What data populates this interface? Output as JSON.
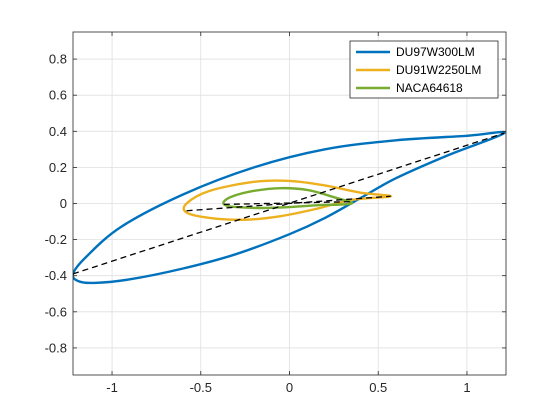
{
  "chart_data": {
    "type": "line",
    "title": "",
    "xlabel": "",
    "ylabel": "",
    "xlim": [
      -1.22,
      1.22
    ],
    "ylim": [
      -0.95,
      0.95
    ],
    "grid": true,
    "legend_location": "top-right",
    "x_ticks": [
      -1,
      -0.5,
      0,
      0.5,
      1
    ],
    "x_tick_labels": [
      "-1",
      "-0.5",
      "0",
      "0.5",
      "1"
    ],
    "y_ticks": [
      -0.8,
      -0.6,
      -0.4,
      -0.2,
      0,
      0.2,
      0.4,
      0.6,
      0.8
    ],
    "y_tick_labels": [
      "-0.8",
      "-0.6",
      "-0.4",
      "-0.2",
      "0",
      "0.2",
      "0.4",
      "0.6",
      "0.8"
    ],
    "series": [
      {
        "name": "DU97W300LM",
        "color": "#0072BD",
        "style": "solid",
        "x": [
          1.21,
          1.0,
          0.6,
          0.2,
          -0.2,
          -0.6,
          -0.95,
          -1.15,
          -1.22,
          -1.19,
          -1.1,
          -0.9,
          -0.6,
          -0.3,
          0.0,
          0.2,
          0.4,
          0.6,
          0.9,
          1.21
        ],
        "y": [
          0.39,
          0.375,
          0.35,
          0.3,
          0.2,
          0.05,
          -0.13,
          -0.3,
          -0.39,
          -0.43,
          -0.44,
          -0.42,
          -0.36,
          -0.28,
          -0.17,
          -0.08,
          0.03,
          0.14,
          0.27,
          0.39
        ]
      },
      {
        "name": "DU91W2250LM",
        "color": "#EDB120",
        "style": "solid",
        "x": [
          0.57,
          0.4,
          0.2,
          0.0,
          -0.2,
          -0.45,
          -0.58,
          -0.58,
          -0.45,
          -0.25,
          -0.05,
          0.15,
          0.35,
          0.57
        ],
        "y": [
          0.04,
          0.06,
          0.1,
          0.125,
          0.12,
          0.07,
          0.0,
          -0.05,
          -0.08,
          -0.09,
          -0.07,
          -0.03,
          0.02,
          0.04
        ]
      },
      {
        "name": "NACA64618",
        "color": "#77AC30",
        "style": "solid",
        "x": [
          0.35,
          0.25,
          0.1,
          -0.05,
          -0.2,
          -0.32,
          -0.37,
          -0.36,
          -0.3,
          -0.15,
          0.0,
          0.15,
          0.35
        ],
        "y": [
          0.0,
          0.035,
          0.075,
          0.085,
          0.07,
          0.04,
          0.01,
          -0.01,
          -0.02,
          -0.025,
          -0.02,
          -0.01,
          0.0
        ]
      },
      {
        "name": "",
        "color": "#000000",
        "style": "dashed",
        "x": [
          -1.22,
          1.21
        ],
        "y": [
          -0.39,
          0.39
        ]
      },
      {
        "name": "",
        "color": "#000000",
        "style": "dashed",
        "x": [
          -0.58,
          0.57
        ],
        "y": [
          -0.04,
          0.04
        ]
      },
      {
        "name": "",
        "color": "#000000",
        "style": "dashed",
        "x": [
          -0.37,
          0.35
        ],
        "y": [
          -0.005,
          0.01
        ]
      }
    ]
  }
}
